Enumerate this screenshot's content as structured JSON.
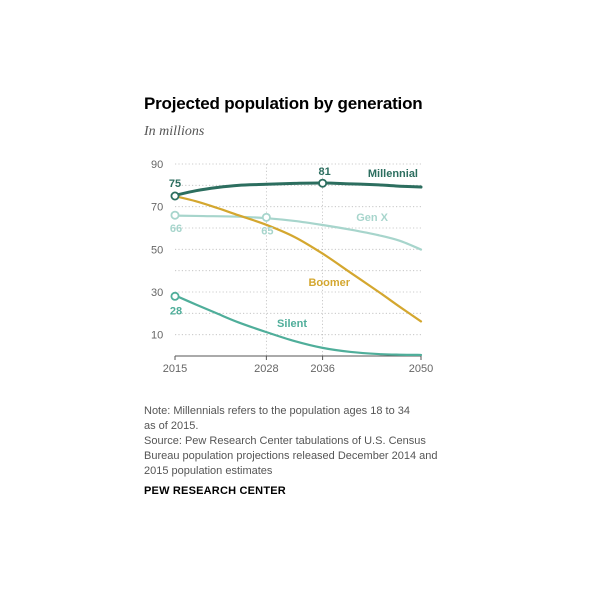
{
  "chart_data": {
    "type": "line",
    "title": "Projected population by generation",
    "subtitle": "In millions",
    "xlabel": "",
    "ylabel": "",
    "x_ticks": [
      2015,
      2028,
      2036,
      2050
    ],
    "y_ticks": [
      10,
      30,
      50,
      70,
      90
    ],
    "xlim": [
      2015,
      2050
    ],
    "ylim": [
      0,
      90
    ],
    "grid": true,
    "series": [
      {
        "name": "Millennial",
        "color": "#2c6e5f",
        "x": [
          2015,
          2018,
          2021,
          2024,
          2028,
          2032,
          2036,
          2040,
          2044,
          2047,
          2050
        ],
        "y": [
          75.3,
          77.5,
          79.0,
          80.0,
          80.5,
          80.9,
          81.1,
          80.7,
          80.2,
          79.6,
          79.2
        ]
      },
      {
        "name": "Gen X",
        "color": "#a7d5cc",
        "x": [
          2015,
          2019,
          2024,
          2028,
          2032,
          2036,
          2040,
          2044,
          2047,
          2050
        ],
        "y": [
          65.8,
          65.6,
          65.3,
          64.6,
          63.3,
          61.4,
          59.2,
          56.6,
          54.0,
          49.9
        ]
      },
      {
        "name": "Boomer",
        "color": "#d4a72f",
        "x": [
          2015,
          2018,
          2021,
          2024,
          2028,
          2032,
          2036,
          2040,
          2044,
          2047,
          2050
        ],
        "y": [
          74.9,
          72.5,
          69.4,
          66.0,
          61.5,
          55.8,
          48.0,
          39.0,
          30.0,
          23.0,
          16.2
        ]
      },
      {
        "name": "Silent",
        "color": "#4fae9a",
        "x": [
          2015,
          2018,
          2021,
          2024,
          2028,
          2032,
          2036,
          2040,
          2044,
          2047,
          2050
        ],
        "y": [
          28.4,
          24.1,
          19.9,
          15.8,
          11.2,
          7.0,
          3.8,
          1.9,
          0.9,
          0.6,
          0.5
        ]
      }
    ],
    "markers": [
      {
        "series": "Millennial",
        "x": 2015,
        "y": 75,
        "label": "75"
      },
      {
        "series": "Millennial",
        "x": 2036,
        "y": 81,
        "label": "81"
      },
      {
        "series": "Gen X",
        "x": 2015,
        "y": 66,
        "label": "66"
      },
      {
        "series": "Gen X",
        "x": 2028,
        "y": 65,
        "label": "65"
      },
      {
        "series": "Silent",
        "x": 2015,
        "y": 28,
        "label": "28"
      }
    ]
  },
  "notes": {
    "note_line1": "Note: Millennials refers to the population ages 18 to 34",
    "note_line2": "as of 2015.",
    "source_line1": "Source: Pew Research Center tabulations of U.S. Census",
    "source_line2": "Bureau population projections released December 2014 and",
    "source_line3": "2015 population estimates"
  },
  "footer": {
    "org": "PEW RESEARCH CENTER"
  }
}
